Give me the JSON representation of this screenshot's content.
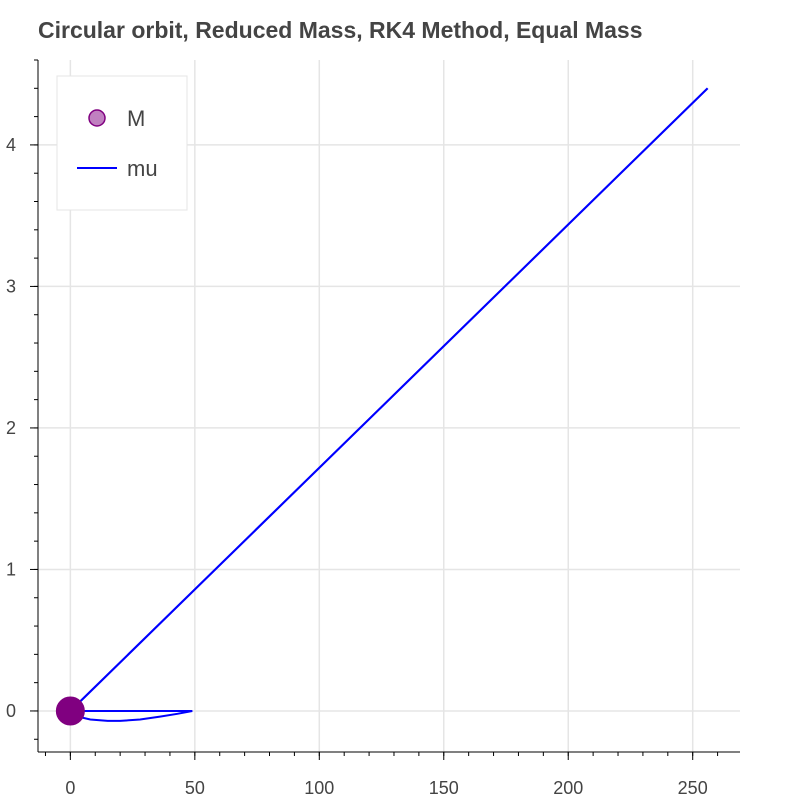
{
  "chart_data": {
    "type": "line",
    "title": "Circular orbit, Reduced Mass, RK4 Method, Equal Mass",
    "xlabel": "",
    "ylabel": "",
    "xlim": [
      -13,
      269
    ],
    "ylim": [
      -0.29,
      4.6
    ],
    "x_ticks": [
      0,
      50,
      100,
      150,
      200,
      250
    ],
    "y_ticks": [
      0,
      1,
      2,
      3,
      4
    ],
    "grid": true,
    "legend_position": "top-left",
    "series": [
      {
        "name": "M",
        "kind": "marker",
        "color": "#800080",
        "fill": "#c080c0",
        "points": [
          [
            0,
            0
          ]
        ]
      },
      {
        "name": "mu",
        "kind": "line",
        "color": "#0000ff",
        "segments": [
          [
            [
              0,
              0
            ],
            [
              256,
              4.4
            ]
          ],
          [
            [
              256,
              4.4
            ],
            [
              0,
              0
            ]
          ],
          [
            [
              0,
              0
            ],
            [
              3,
              -0.04
            ],
            [
              8,
              -0.06
            ],
            [
              15,
              -0.07
            ],
            [
              20,
              -0.07
            ],
            [
              28,
              -0.06
            ],
            [
              36,
              -0.04
            ],
            [
              43,
              -0.02
            ],
            [
              49,
              0
            ]
          ],
          [
            [
              49,
              0
            ],
            [
              0,
              0
            ]
          ]
        ]
      }
    ]
  }
}
